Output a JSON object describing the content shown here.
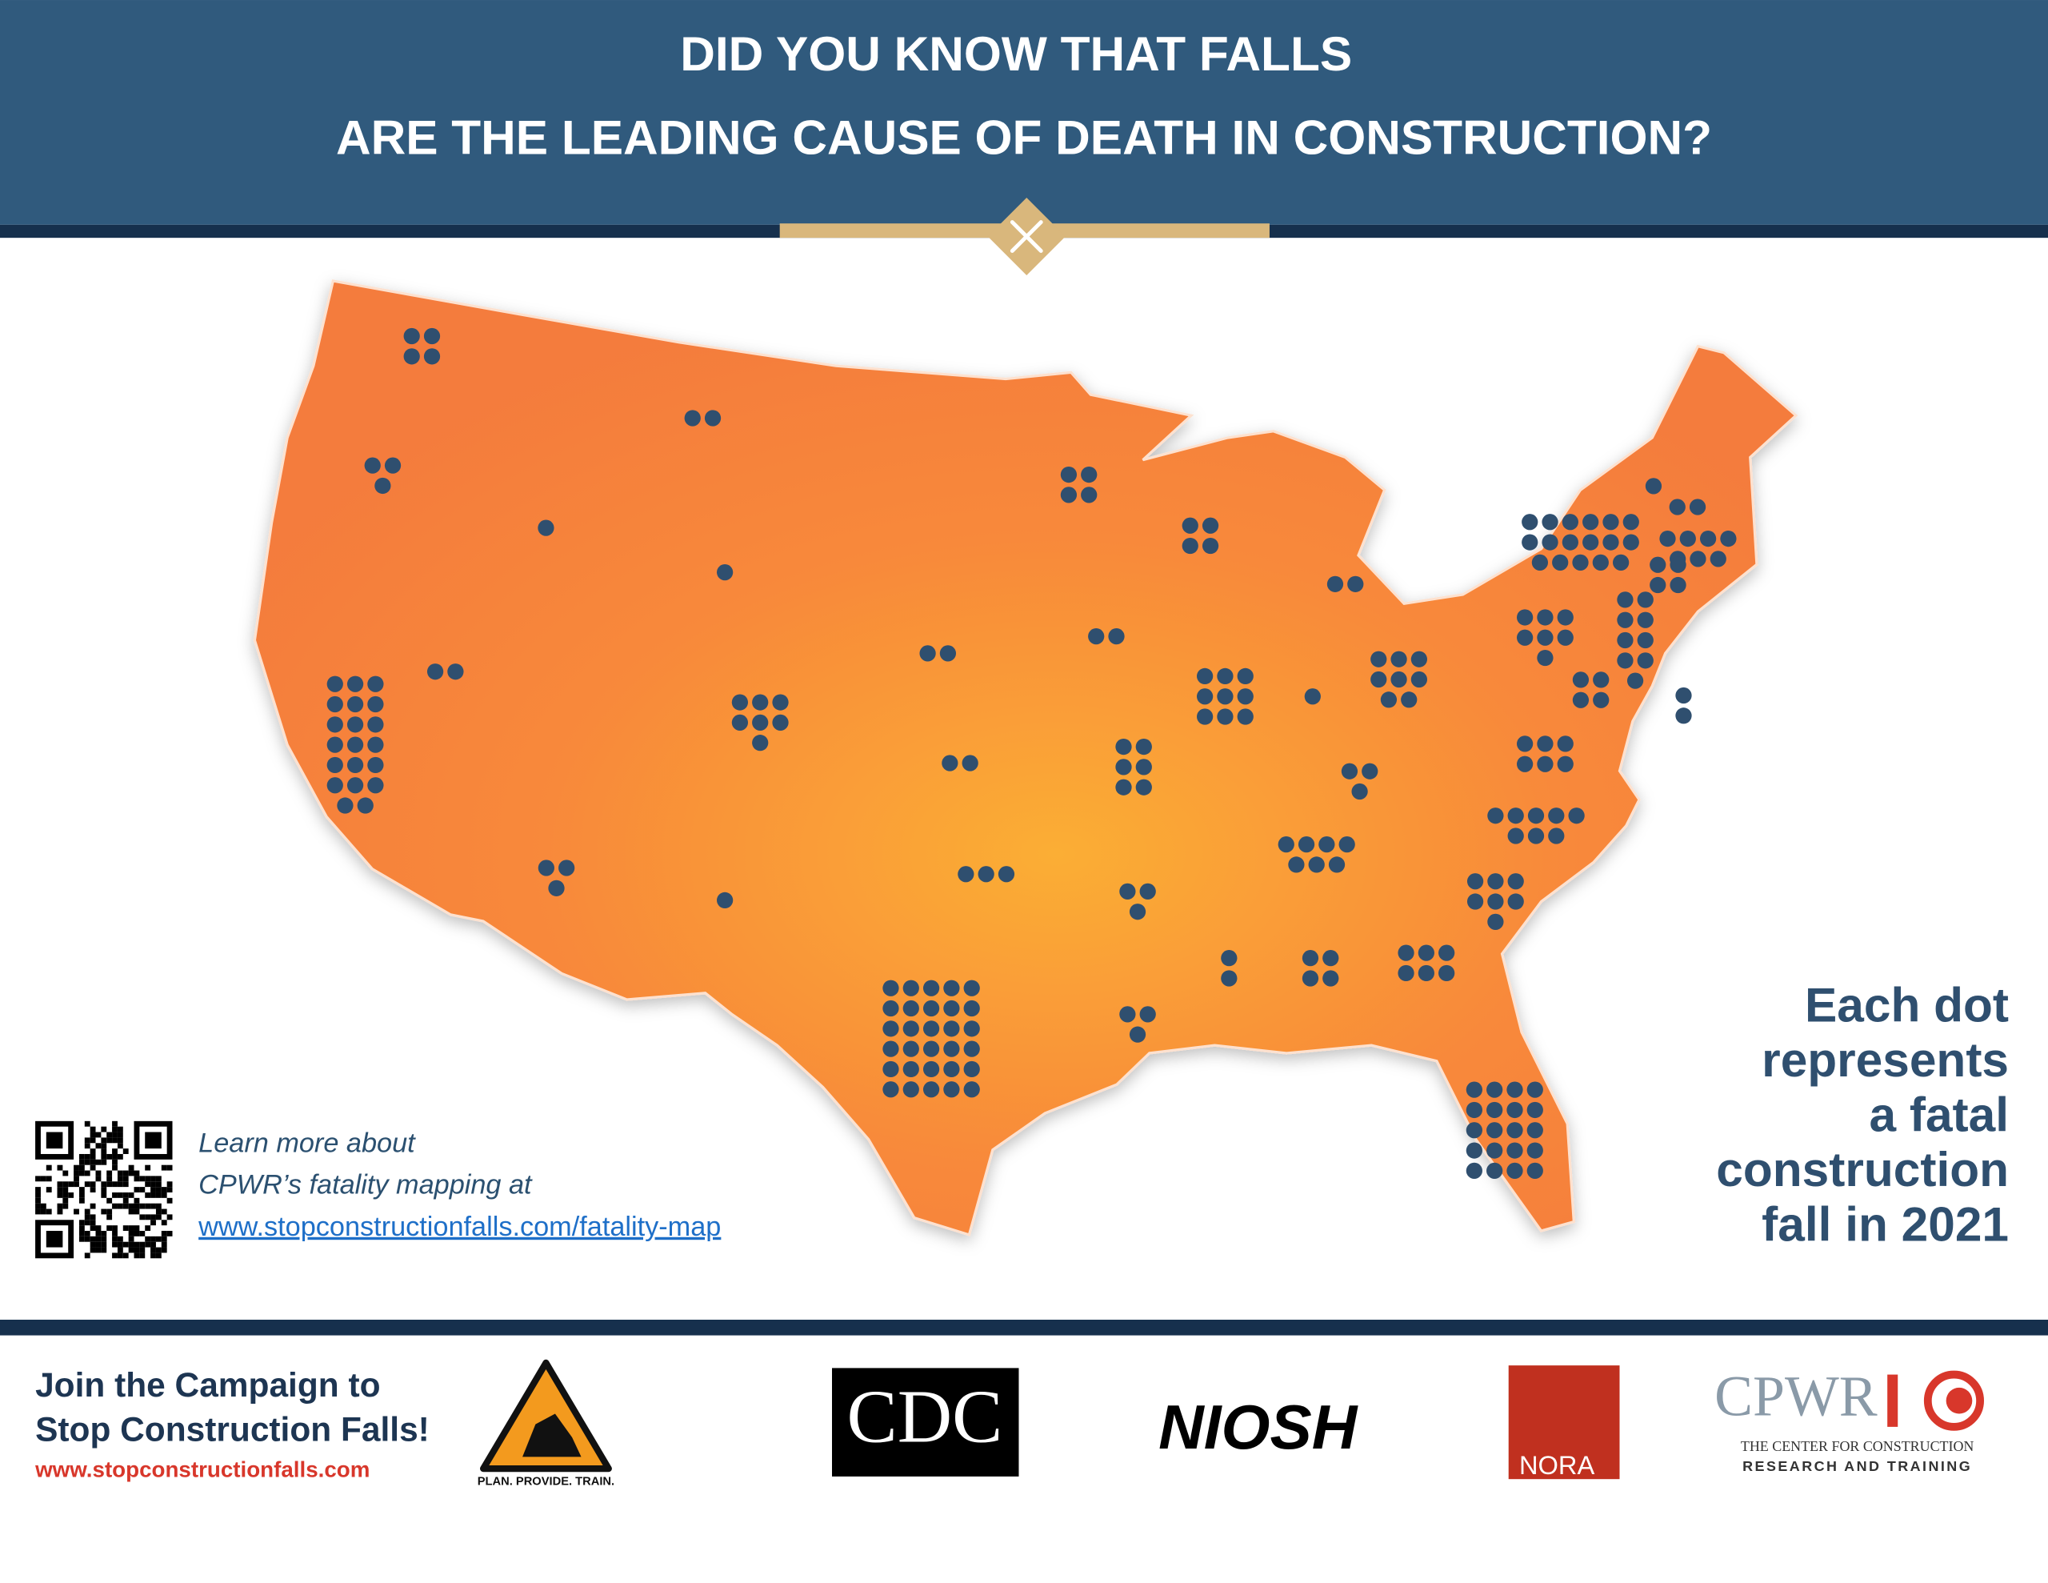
{
  "header": {
    "title_lines": [
      "DID YOU KNOW THAT FALLS",
      "ARE THE LEADING CAUSE OF DEATH IN CONSTRUCTION?"
    ]
  },
  "map": {
    "fill": "#f47c3c",
    "dot_color": "#2f4f6f",
    "dot_counts": [
      4,
      3,
      20,
      1,
      2,
      1,
      2,
      3,
      7,
      1,
      2,
      2,
      3,
      30,
      4,
      2,
      6,
      3,
      3,
      4,
      9,
      2,
      1,
      8,
      3,
      7,
      2,
      4,
      6,
      20,
      7,
      8,
      6,
      7,
      17,
      9,
      4,
      2,
      1,
      2,
      7,
      4
    ]
  },
  "legend": {
    "lines": [
      "Each dot",
      "represents",
      "a fatal",
      "construction",
      "fall in 2021"
    ]
  },
  "learn_more": {
    "lines": [
      "Learn more about",
      "CPWR’s fatality mapping at"
    ],
    "link": "www.stopconstructionfalls.com/fatality-map"
  },
  "footer": {
    "campaign_lines": [
      "Join the Campaign to",
      "Stop Construction Falls!"
    ],
    "url": "www.stopconstructionfalls.com",
    "logos": {
      "campaign_tagline": "PLAN. PROVIDE. TRAIN.",
      "cdc": "CDC",
      "niosh": "NIOSH",
      "nora": "NORA",
      "cpwr": "CPWR",
      "cpwr_line1": "THE CENTER FOR CONSTRUCTION",
      "cpwr_line2": "RESEARCH AND TRAINING"
    }
  }
}
